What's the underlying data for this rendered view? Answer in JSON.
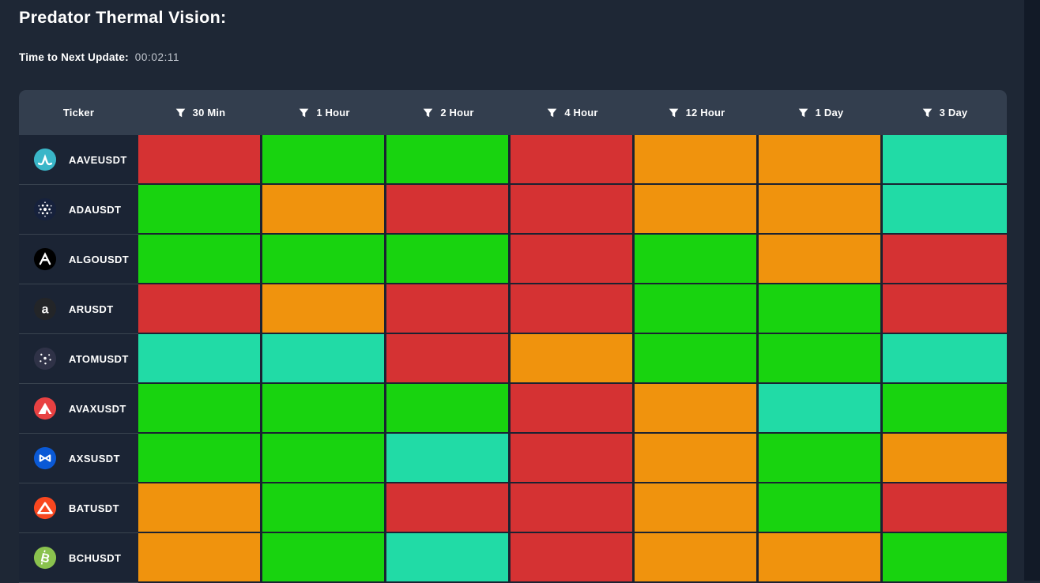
{
  "page": {
    "title": "Predator Thermal Vision:",
    "update_label": "Time to Next Update:",
    "update_value": "00:02:11"
  },
  "colors": {
    "red": "#d53233",
    "green": "#18d30f",
    "orange": "#f0930d",
    "teal": "#21dba6",
    "header_bg": "#333e4e",
    "page_bg": "#1e2735"
  },
  "icons": {
    "filter": "funnel-icon"
  },
  "table": {
    "columns": [
      {
        "label": "Ticker",
        "filter": false
      },
      {
        "label": "30 Min",
        "filter": true
      },
      {
        "label": "1 Hour",
        "filter": true
      },
      {
        "label": "2 Hour",
        "filter": true
      },
      {
        "label": "4 Hour",
        "filter": true
      },
      {
        "label": "12 Hour",
        "filter": true
      },
      {
        "label": "1 Day",
        "filter": true
      },
      {
        "label": "3 Day",
        "filter": true
      }
    ],
    "rows": [
      {
        "ticker": "AAVEUSDT",
        "icon": "aave",
        "icon_bg": "#3ab6c8",
        "cells": [
          "red",
          "green",
          "green",
          "red",
          "orange",
          "orange",
          "teal"
        ]
      },
      {
        "ticker": "ADAUSDT",
        "icon": "cardano",
        "icon_bg": "#16213c",
        "cells": [
          "green",
          "orange",
          "red",
          "red",
          "orange",
          "orange",
          "teal"
        ]
      },
      {
        "ticker": "ALGOUSDT",
        "icon": "algorand",
        "icon_bg": "#000000",
        "cells": [
          "green",
          "green",
          "green",
          "red",
          "green",
          "orange",
          "red"
        ]
      },
      {
        "ticker": "ARUSDT",
        "icon": "arweave",
        "icon_bg": "#232528",
        "cells": [
          "red",
          "orange",
          "red",
          "red",
          "green",
          "green",
          "red"
        ]
      },
      {
        "ticker": "ATOMUSDT",
        "icon": "cosmos",
        "icon_bg": "#2f3247",
        "cells": [
          "teal",
          "teal",
          "red",
          "orange",
          "green",
          "green",
          "teal"
        ]
      },
      {
        "ticker": "AVAXUSDT",
        "icon": "avalanche",
        "icon_bg": "#e84142",
        "cells": [
          "green",
          "green",
          "green",
          "red",
          "orange",
          "teal",
          "green"
        ]
      },
      {
        "ticker": "AXSUSDT",
        "icon": "axie",
        "icon_bg": "#0a59d6",
        "cells": [
          "green",
          "green",
          "teal",
          "red",
          "orange",
          "green",
          "orange"
        ]
      },
      {
        "ticker": "BATUSDT",
        "icon": "bat",
        "icon_bg": "#f9471f",
        "cells": [
          "orange",
          "green",
          "red",
          "red",
          "orange",
          "green",
          "red"
        ]
      },
      {
        "ticker": "BCHUSDT",
        "icon": "bch",
        "icon_bg": "#8ac24e",
        "cells": [
          "orange",
          "green",
          "teal",
          "red",
          "orange",
          "orange",
          "green"
        ]
      }
    ]
  }
}
